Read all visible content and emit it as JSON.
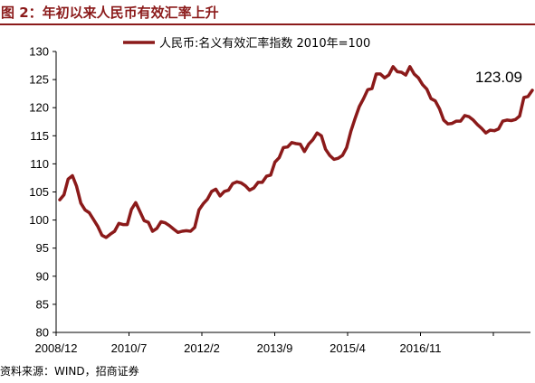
{
  "figure": {
    "title": "图 2：年初以来人民币有效汇率上升",
    "source": "资料来源：WIND，招商证券"
  },
  "colors": {
    "series": "#8b1a1a",
    "header": "#8b1a1a",
    "axis": "#000000"
  },
  "chart_data": {
    "type": "line",
    "title": "",
    "xlabel": "",
    "ylabel": "",
    "ylim": [
      80,
      130
    ],
    "yticks": [
      "80",
      "85",
      "90",
      "95",
      "100",
      "105",
      "110",
      "115",
      "120",
      "125",
      "130"
    ],
    "xtick_labels": [
      "2008/12",
      "2010/7",
      "2012/2",
      "2013/9",
      "2015/4",
      "2016/11"
    ],
    "grid": false,
    "legend_position": "top-center",
    "series": [
      {
        "name": "人民币:名义有效汇率指数 2010年=100",
        "values": [
          103.6,
          104.5,
          107.3,
          107.9,
          106,
          103,
          101.8,
          101.3,
          100.1,
          98.9,
          97.3,
          96.9,
          97.5,
          98,
          99.4,
          99.2,
          99.2,
          101.9,
          103.1,
          101.5,
          99.9,
          99.6,
          98,
          98.5,
          99.7,
          99.5,
          99,
          98.4,
          97.8,
          98,
          98.1,
          98,
          98.7,
          101.8,
          102.9,
          103.7,
          105.1,
          105.5,
          104.3,
          105.1,
          105.3,
          106.5,
          106.8,
          106.6,
          106.1,
          105.3,
          105.7,
          106.7,
          106.7,
          107.8,
          108,
          110.3,
          111.1,
          112.9,
          113,
          113.8,
          113.6,
          113.5,
          112.2,
          113.5,
          114.3,
          115.5,
          115,
          112.6,
          111.5,
          110.8,
          111,
          111.5,
          112.9,
          115.8,
          118.1,
          120.2,
          121.6,
          123.2,
          123.4,
          126,
          126,
          125.3,
          125.8,
          127.3,
          126.4,
          126.3,
          125.8,
          127.3,
          126,
          125.3,
          124.1,
          123.3,
          121.6,
          121.2,
          119.8,
          117.8,
          117.1,
          117.2,
          117.6,
          117.6,
          118.6,
          118.4,
          117.8,
          117,
          116.3,
          115.5,
          116,
          115.9,
          116.2,
          117.6,
          117.8,
          117.7,
          117.9,
          118.5,
          121.8,
          122,
          123.09
        ]
      }
    ],
    "annotations": [
      {
        "text": "123.09",
        "value": 123.09
      }
    ]
  }
}
